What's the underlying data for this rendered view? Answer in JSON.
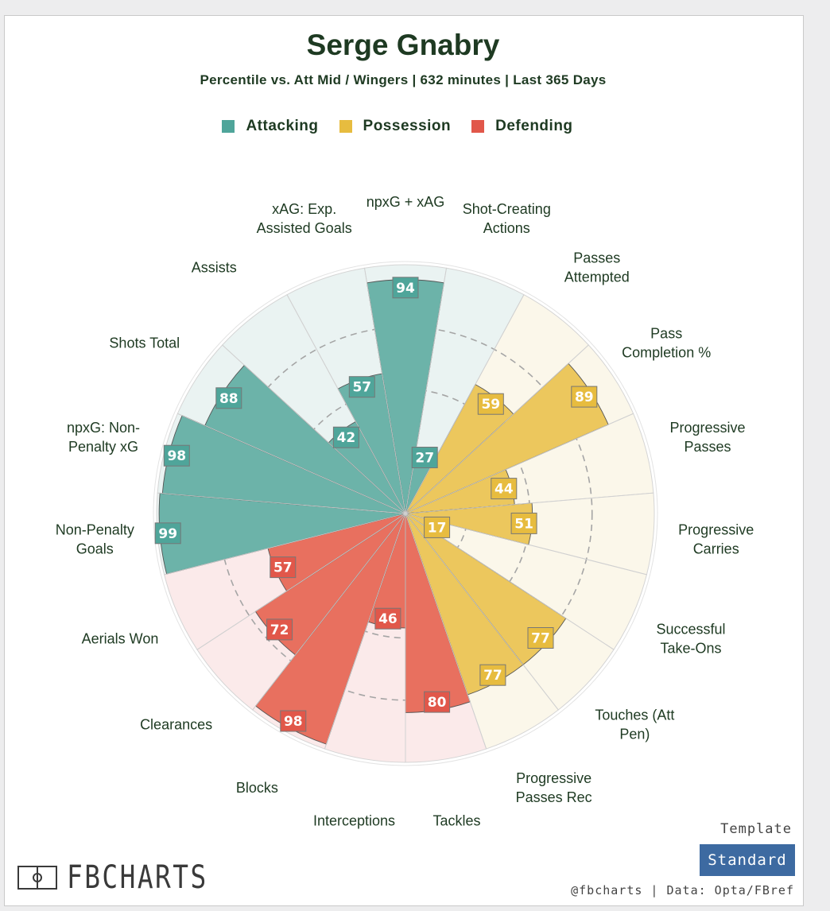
{
  "header": {
    "title": "Serge Gnabry",
    "subtitle": "Percentile vs. Att Mid / Wingers | 632 minutes | Last 365 Days"
  },
  "legend": [
    {
      "label": "Attacking",
      "color": "#4fa59a"
    },
    {
      "label": "Possession",
      "color": "#e7bc3f"
    },
    {
      "label": "Defending",
      "color": "#e1574a"
    }
  ],
  "chart_data": {
    "type": "polar-bar",
    "max": 100,
    "rings": [
      25,
      50,
      75
    ],
    "categories": [
      {
        "label": "npxG + xAG",
        "value": 94,
        "group": "Attacking"
      },
      {
        "label": "Shot-Creating Actions",
        "value": 27,
        "group": "Attacking"
      },
      {
        "label": "Passes Attempted",
        "value": 59,
        "group": "Possession"
      },
      {
        "label": "Pass Completion %",
        "value": 89,
        "group": "Possession"
      },
      {
        "label": "Progressive Passes",
        "value": 44,
        "group": "Possession"
      },
      {
        "label": "Progressive Carries",
        "value": 51,
        "group": "Possession"
      },
      {
        "label": "Successful Take-Ons",
        "value": 17,
        "group": "Possession"
      },
      {
        "label": "Touches (Att Pen)",
        "value": 77,
        "group": "Possession"
      },
      {
        "label": "Progressive Passes Rec",
        "value": 77,
        "group": "Possession"
      },
      {
        "label": "Tackles",
        "value": 80,
        "group": "Defending"
      },
      {
        "label": "Interceptions",
        "value": 46,
        "group": "Defending"
      },
      {
        "label": "Blocks",
        "value": 98,
        "group": "Defending"
      },
      {
        "label": "Clearances",
        "value": 72,
        "group": "Defending"
      },
      {
        "label": "Aerials Won",
        "value": 57,
        "group": "Defending"
      },
      {
        "label": "Non-Penalty Goals",
        "value": 99,
        "group": "Attacking"
      },
      {
        "label": "npxG: Non-Penalty xG",
        "value": 98,
        "group": "Attacking"
      },
      {
        "label": "Shots Total",
        "value": 88,
        "group": "Attacking"
      },
      {
        "label": "Assists",
        "value": 42,
        "group": "Attacking"
      },
      {
        "label": "xAG: Exp. Assisted Goals",
        "value": 57,
        "group": "Attacking"
      }
    ],
    "group_colors": {
      "Attacking": {
        "fill": "#6cb3a9",
        "light": "#eaf3f2",
        "badge": "#4fa59a"
      },
      "Possession": {
        "fill": "#ecc75d",
        "light": "#fbf7ea",
        "badge": "#e7bc3f"
      },
      "Defending": {
        "fill": "#e8705f",
        "light": "#fbeaea",
        "badge": "#e1574a"
      }
    }
  },
  "footer": {
    "brand": "FBCHARTS",
    "template_label": "Template",
    "template_value": "Standard",
    "credit": "@fbcharts | Data: Opta/FBref"
  }
}
